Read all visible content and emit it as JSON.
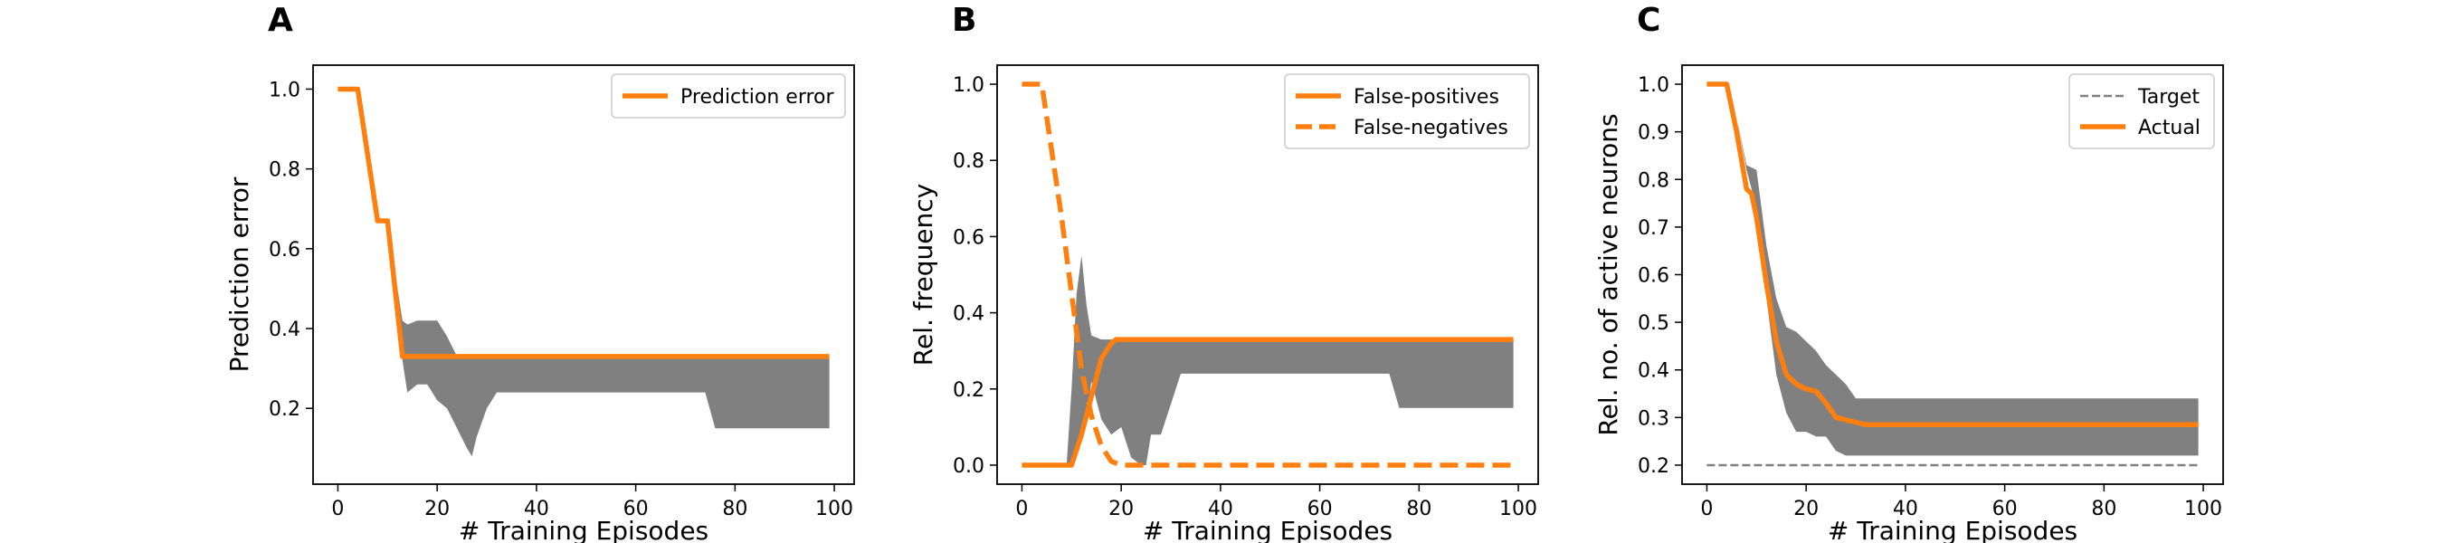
{
  "colors": {
    "line": "#ff7f0e",
    "band": "#808080",
    "target": "#808080"
  },
  "chart_data": [
    {
      "type": "line",
      "panel_label": "A",
      "xlabel": "# Training Episodes",
      "ylabel": "Prediction error",
      "xlim": [
        -5,
        104
      ],
      "ylim": [
        0.01,
        1.06
      ],
      "xticks": [
        0,
        20,
        40,
        60,
        80,
        100
      ],
      "yticks": [
        0.2,
        0.4,
        0.6,
        0.8,
        1.0
      ],
      "xtick_labels": [
        "0",
        "20",
        "40",
        "60",
        "80",
        "100"
      ],
      "ytick_labels": [
        "0.2",
        "0.4",
        "0.6",
        "0.8",
        "1.0"
      ],
      "legend": {
        "position": "top-right"
      },
      "band": {
        "x": [
          0,
          4,
          8,
          10,
          12,
          13,
          14,
          16,
          18,
          20,
          22,
          24,
          26,
          27,
          28,
          30,
          32,
          34,
          74,
          76,
          99
        ],
        "upper": [
          1.0,
          1.0,
          0.67,
          0.67,
          0.5,
          0.42,
          0.41,
          0.42,
          0.42,
          0.42,
          0.38,
          0.33,
          0.33,
          0.33,
          0.33,
          0.33,
          0.33,
          0.33,
          0.33,
          0.33,
          0.33
        ],
        "lower": [
          1.0,
          1.0,
          0.67,
          0.67,
          0.45,
          0.32,
          0.24,
          0.26,
          0.26,
          0.22,
          0.2,
          0.15,
          0.1,
          0.08,
          0.13,
          0.2,
          0.24,
          0.24,
          0.24,
          0.15,
          0.15
        ]
      },
      "series": [
        {
          "name": "Prediction error",
          "style": "solid",
          "x": [
            0,
            4,
            8,
            9,
            10,
            13,
            99
          ],
          "y": [
            1.0,
            1.0,
            0.67,
            0.67,
            0.67,
            0.33,
            0.33
          ]
        }
      ]
    },
    {
      "type": "line",
      "panel_label": "B",
      "xlabel": "# Training Episodes",
      "ylabel": "Rel. frequency",
      "xlim": [
        -5,
        104
      ],
      "ylim": [
        -0.05,
        1.05
      ],
      "xticks": [
        0,
        20,
        40,
        60,
        80,
        100
      ],
      "yticks": [
        0.0,
        0.2,
        0.4,
        0.6,
        0.8,
        1.0
      ],
      "xtick_labels": [
        "0",
        "20",
        "40",
        "60",
        "80",
        "100"
      ],
      "ytick_labels": [
        "0.0",
        "0.2",
        "0.4",
        "0.6",
        "0.8",
        "1.0"
      ],
      "legend": {
        "position": "top-right"
      },
      "band": {
        "x": [
          0,
          9,
          10,
          11,
          12,
          13,
          14,
          16,
          18,
          20,
          22,
          24,
          25,
          26,
          28,
          30,
          32,
          34,
          74,
          76,
          99
        ],
        "upper": [
          0.0,
          0.0,
          0.2,
          0.45,
          0.55,
          0.42,
          0.34,
          0.33,
          0.33,
          0.33,
          0.33,
          0.33,
          0.33,
          0.33,
          0.33,
          0.33,
          0.33,
          0.33,
          0.33,
          0.33,
          0.33
        ],
        "lower": [
          0.0,
          0.0,
          0.0,
          0.02,
          0.06,
          0.12,
          0.22,
          0.12,
          0.08,
          0.1,
          0.02,
          0.0,
          0.0,
          0.08,
          0.08,
          0.16,
          0.24,
          0.24,
          0.24,
          0.15,
          0.15
        ]
      },
      "series": [
        {
          "name": "False-positives",
          "style": "solid",
          "x": [
            0,
            10,
            12,
            14,
            16,
            18,
            19,
            99
          ],
          "y": [
            0.0,
            0.0,
            0.08,
            0.18,
            0.28,
            0.32,
            0.33,
            0.33
          ]
        },
        {
          "name": "False-negatives",
          "style": "dashed",
          "x": [
            0,
            4,
            8,
            10,
            12,
            14,
            16,
            18,
            20,
            99
          ],
          "y": [
            1.0,
            1.0,
            0.65,
            0.45,
            0.25,
            0.13,
            0.05,
            0.01,
            0.0,
            0.0
          ]
        }
      ]
    },
    {
      "type": "line",
      "panel_label": "C",
      "xlabel": "# Training Episodes",
      "ylabel": "Rel. no. of active neurons",
      "xlim": [
        -5,
        104
      ],
      "ylim": [
        0.16,
        1.04
      ],
      "xticks": [
        0,
        20,
        40,
        60,
        80,
        100
      ],
      "yticks": [
        0.2,
        0.3,
        0.4,
        0.5,
        0.6,
        0.7,
        0.8,
        0.9,
        1.0
      ],
      "xtick_labels": [
        "0",
        "20",
        "40",
        "60",
        "80",
        "100"
      ],
      "ytick_labels": [
        "0.2",
        "0.3",
        "0.4",
        "0.5",
        "0.6",
        "0.7",
        "0.8",
        "0.9",
        "1.0"
      ],
      "legend": {
        "position": "top-right"
      },
      "band": {
        "x": [
          0,
          4,
          6,
          8,
          10,
          12,
          14,
          16,
          18,
          20,
          22,
          24,
          26,
          28,
          30,
          32,
          34,
          99
        ],
        "upper": [
          1.0,
          1.0,
          0.93,
          0.83,
          0.82,
          0.66,
          0.55,
          0.49,
          0.48,
          0.46,
          0.44,
          0.41,
          0.39,
          0.37,
          0.34,
          0.34,
          0.34,
          0.34
        ],
        "lower": [
          1.0,
          1.0,
          0.93,
          0.82,
          0.74,
          0.55,
          0.39,
          0.31,
          0.27,
          0.27,
          0.26,
          0.26,
          0.23,
          0.22,
          0.22,
          0.22,
          0.22,
          0.22
        ]
      },
      "series": [
        {
          "name": "Target",
          "style": "thin-dashed",
          "x": [
            0,
            99
          ],
          "y": [
            0.2,
            0.2
          ]
        },
        {
          "name": "Actual",
          "style": "solid",
          "x": [
            0,
            4,
            6,
            8,
            9,
            10,
            12,
            14,
            16,
            18,
            20,
            22,
            24,
            26,
            28,
            30,
            32,
            99
          ],
          "y": [
            1.0,
            1.0,
            0.9,
            0.78,
            0.77,
            0.72,
            0.58,
            0.46,
            0.39,
            0.37,
            0.36,
            0.355,
            0.33,
            0.3,
            0.295,
            0.29,
            0.285,
            0.285
          ]
        }
      ]
    }
  ]
}
